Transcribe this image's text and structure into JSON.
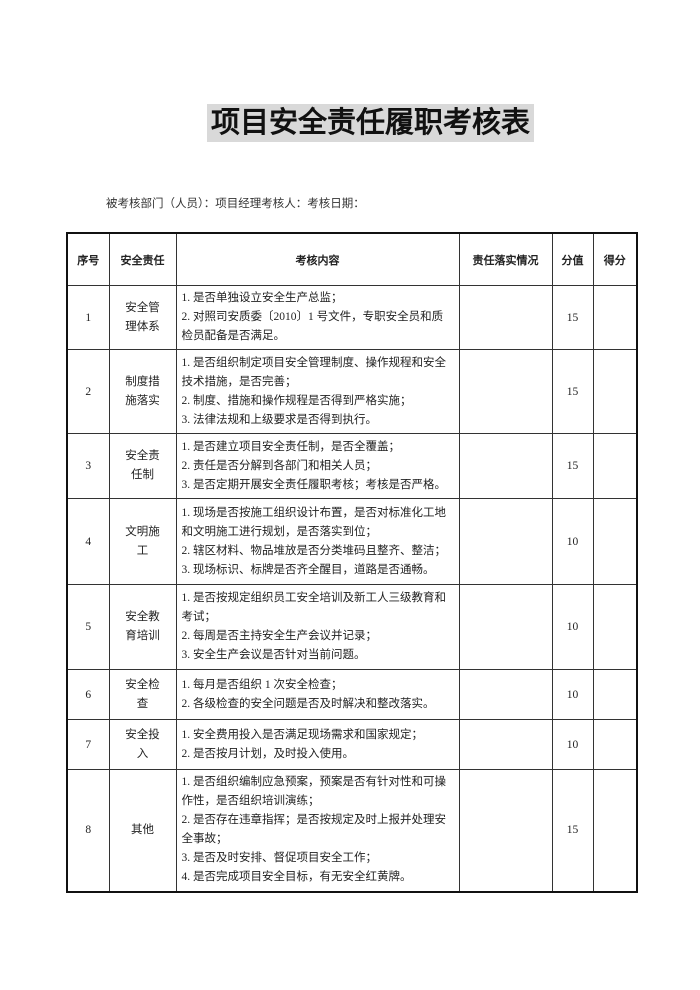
{
  "title": "项目安全责任履职考核表",
  "subtitle": "被考核部门（人员）：项目经理考核人：考核日期：",
  "table": {
    "headers": [
      "序号",
      "安全责任",
      "考核内容",
      "责任落实情况",
      "分值",
      "得分"
    ],
    "rows": [
      {
        "no": "1",
        "responsibility": "安全管理体系",
        "items": [
          "1. 是否单独设立安全生产总监；",
          "2. 对照司安质委〔2010〕1 号文件，专职安全员和质检员配备是否满足。"
        ],
        "implementation": "",
        "points": "15",
        "score": ""
      },
      {
        "no": "2",
        "responsibility": "制度措施落实",
        "items": [
          "1. 是否组织制定项目安全管理制度、操作规程和安全技术措施，是否完善；",
          "2. 制度、措施和操作规程是否得到严格实施；",
          "3. 法律法规和上级要求是否得到执行。"
        ],
        "implementation": "",
        "points": "15",
        "score": ""
      },
      {
        "no": "3",
        "responsibility": "安全责任制",
        "items": [
          "1. 是否建立项目安全责任制，是否全覆盖；",
          "2. 责任是否分解到各部门和相关人员；",
          "3. 是否定期开展安全责任履职考核；考核是否严格。"
        ],
        "implementation": "",
        "points": "15",
        "score": ""
      },
      {
        "no": "4",
        "responsibility": "文明施工",
        "items": [
          "1. 现场是否按施工组织设计布置，是否对标准化工地和文明施工进行规划，是否落实到位；",
          "2. 辖区材料、物品堆放是否分类堆码且整齐、整洁；",
          "3. 现场标识、标牌是否齐全醒目，道路是否通畅。"
        ],
        "implementation": "",
        "points": "10",
        "score": ""
      },
      {
        "no": "5",
        "responsibility": "安全教育培训",
        "items": [
          "1. 是否按规定组织员工安全培训及新工人三级教育和考试；",
          "2. 每周是否主持安全生产会议并记录；",
          "3. 安全生产会议是否针对当前问题。"
        ],
        "implementation": "",
        "points": "10",
        "score": ""
      },
      {
        "no": "6",
        "responsibility": "安全检查",
        "items": [
          "1. 每月是否组织 1 次安全检查；",
          "2. 各级检查的安全问题是否及时解决和整改落实。"
        ],
        "implementation": "",
        "points": "10",
        "score": ""
      },
      {
        "no": "7",
        "responsibility": "安全投入",
        "items": [
          "1. 安全费用投入是否满足现场需求和国家规定；",
          "2. 是否按月计划，及时投入使用。"
        ],
        "implementation": "",
        "points": "10",
        "score": ""
      },
      {
        "no": "8",
        "responsibility": "其他",
        "items": [
          "1. 是否组织编制应急预案，预案是否有针对性和可操作性，是否组织培训演练；",
          "2. 是否存在违章指挥；是否按规定及时上报并处理安全事故；",
          "3. 是否及时安排、督促项目安全工作；",
          "4. 是否完成项目安全目标，有无安全红黄牌。"
        ],
        "implementation": "",
        "points": "15",
        "score": ""
      }
    ]
  }
}
